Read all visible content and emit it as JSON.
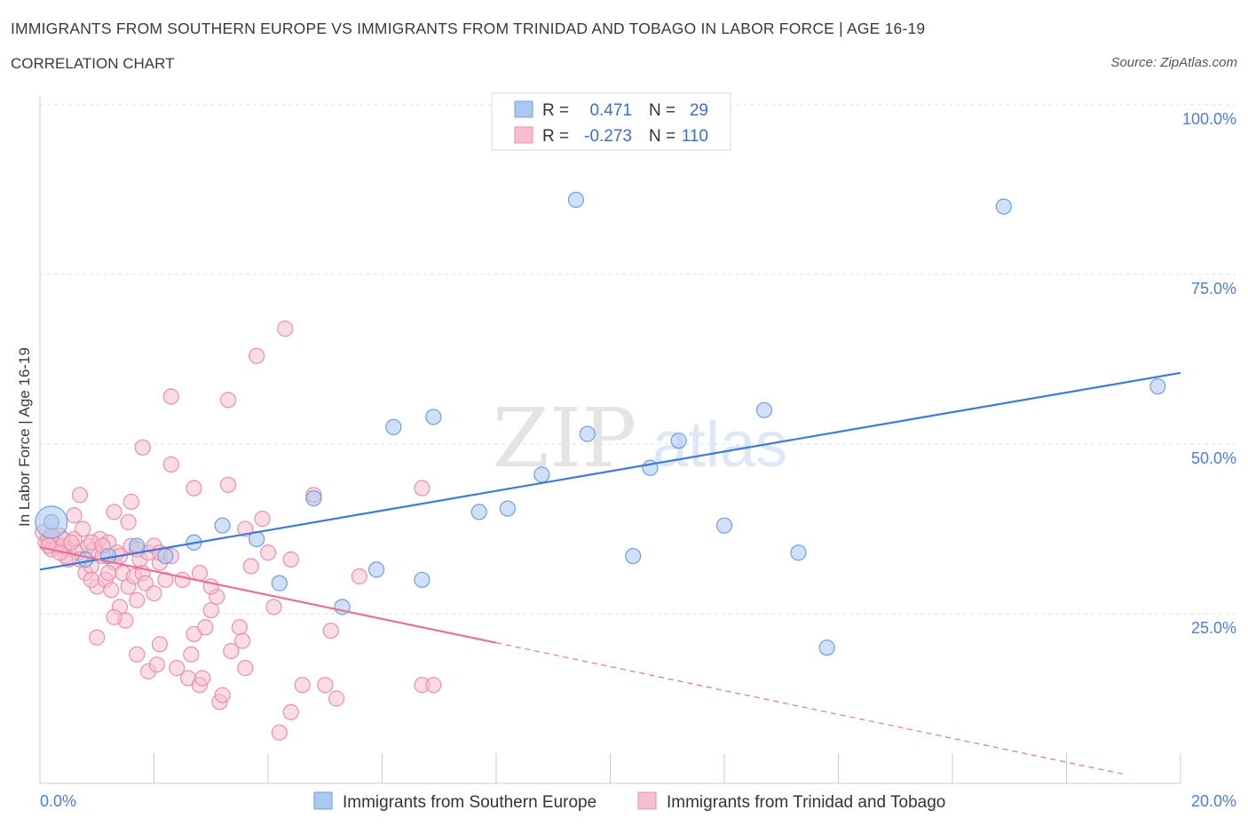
{
  "header": {
    "title": "IMMIGRANTS FROM SOUTHERN EUROPE VS IMMIGRANTS FROM TRINIDAD AND TOBAGO IN LABOR FORCE | AGE 16-19",
    "subtitle": "CORRELATION CHART",
    "source": "Source: ZipAtlas.com"
  },
  "watermark": {
    "zip": "ZIP",
    "atlas": "atlas"
  },
  "legend": {
    "rows": [
      {
        "r_label": "R =",
        "r_value": "0.471",
        "n_label": "N =",
        "n_value": "29"
      },
      {
        "r_label": "R =",
        "r_value": "-0.273",
        "n_label": "N =",
        "n_value": "110"
      }
    ]
  },
  "colors": {
    "blue_fill": "#aac8f0",
    "blue_stroke": "#6f9fe0",
    "blue_line": "#3e7ad8",
    "pink_fill": "#f6bfd0",
    "pink_stroke": "#ec8fae",
    "pink_line": "#e8709a",
    "axis_text": "#4a7fd4",
    "grid": "#dddddd"
  },
  "chart_data": {
    "type": "scatter",
    "title": "IMMIGRANTS FROM SOUTHERN EUROPE VS IMMIGRANTS FROM TRINIDAD AND TOBAGO IN LABOR FORCE | AGE 16-19",
    "ylabel": "In Labor Force | Age 16-19",
    "xlabel": "",
    "xlim": [
      0,
      20
    ],
    "ylim": [
      0,
      100
    ],
    "x_tick_labels": [
      "0.0%",
      "20.0%"
    ],
    "y_tick_labels": [
      "100.0%",
      "75.0%",
      "50.0%",
      "25.0%"
    ],
    "y_tick_values": [
      100,
      75,
      50,
      25
    ],
    "grid": true,
    "legend_position": "bottom",
    "series": [
      {
        "name": "Immigrants from Southern Europe",
        "color": "#aac8f0",
        "R": 0.471,
        "N": 29,
        "trend": {
          "x": [
            0,
            20
          ],
          "y": [
            31.5,
            60.5
          ],
          "dashed_from": null
        },
        "points": [
          [
            0.2,
            38.5
          ],
          [
            0.8,
            33.0
          ],
          [
            1.2,
            33.5
          ],
          [
            1.7,
            35.0
          ],
          [
            2.2,
            33.5
          ],
          [
            2.7,
            35.5
          ],
          [
            3.2,
            38.0
          ],
          [
            3.8,
            36.0
          ],
          [
            4.2,
            29.5
          ],
          [
            4.8,
            42.0
          ],
          [
            5.3,
            26.0
          ],
          [
            5.9,
            31.5
          ],
          [
            6.2,
            52.5
          ],
          [
            6.7,
            30.0
          ],
          [
            6.9,
            54.0
          ],
          [
            7.7,
            40.0
          ],
          [
            8.2,
            40.5
          ],
          [
            8.8,
            45.5
          ],
          [
            9.4,
            86.0
          ],
          [
            9.6,
            51.5
          ],
          [
            10.4,
            33.5
          ],
          [
            10.7,
            46.5
          ],
          [
            11.2,
            50.5
          ],
          [
            12.0,
            38.0
          ],
          [
            12.7,
            55.0
          ],
          [
            13.3,
            34.0
          ],
          [
            13.8,
            20.0
          ],
          [
            16.9,
            85.0
          ],
          [
            19.6,
            58.5
          ]
        ]
      },
      {
        "name": "Immigrants from Trinidad and Tobago",
        "color": "#f6bfd0",
        "R": -0.273,
        "N": 110,
        "trend": {
          "x": [
            0,
            20
          ],
          "y": [
            34.8,
            -0.4
          ],
          "dashed_from": 8.0
        },
        "points": [
          [
            0.05,
            37.0
          ],
          [
            0.1,
            35.5
          ],
          [
            0.15,
            36.0
          ],
          [
            0.2,
            34.5
          ],
          [
            0.3,
            35.0
          ],
          [
            0.35,
            36.5
          ],
          [
            0.4,
            35.0
          ],
          [
            0.45,
            33.5
          ],
          [
            0.5,
            34.5
          ],
          [
            0.55,
            35.5
          ],
          [
            0.6,
            36.0
          ],
          [
            0.65,
            34.0
          ],
          [
            0.7,
            33.0
          ],
          [
            0.75,
            37.5
          ],
          [
            0.8,
            31.0
          ],
          [
            0.85,
            35.0
          ],
          [
            0.9,
            32.0
          ],
          [
            0.95,
            34.5
          ],
          [
            1.0,
            29.0
          ],
          [
            1.05,
            36.0
          ],
          [
            1.1,
            33.5
          ],
          [
            1.15,
            30.0
          ],
          [
            1.2,
            35.5
          ],
          [
            1.25,
            28.5
          ],
          [
            1.3,
            32.5
          ],
          [
            1.35,
            34.0
          ],
          [
            1.4,
            26.0
          ],
          [
            1.45,
            31.0
          ],
          [
            1.5,
            24.0
          ],
          [
            1.55,
            29.0
          ],
          [
            1.6,
            35.0
          ],
          [
            1.65,
            30.5
          ],
          [
            1.7,
            27.0
          ],
          [
            1.75,
            33.0
          ],
          [
            1.8,
            31.0
          ],
          [
            1.85,
            29.5
          ],
          [
            1.9,
            34.0
          ],
          [
            2.0,
            28.0
          ],
          [
            2.1,
            32.5
          ],
          [
            2.2,
            30.0
          ],
          [
            0.7,
            42.5
          ],
          [
            0.6,
            39.5
          ],
          [
            1.3,
            40.0
          ],
          [
            1.6,
            41.5
          ],
          [
            1.55,
            38.5
          ],
          [
            1.8,
            49.5
          ],
          [
            2.3,
            57.0
          ],
          [
            2.3,
            47.0
          ],
          [
            2.7,
            43.5
          ],
          [
            3.3,
            56.5
          ],
          [
            3.3,
            44.0
          ],
          [
            3.6,
            37.5
          ],
          [
            3.7,
            32.0
          ],
          [
            3.8,
            63.0
          ],
          [
            3.9,
            39.0
          ],
          [
            4.0,
            34.0
          ],
          [
            4.1,
            26.0
          ],
          [
            4.3,
            67.0
          ],
          [
            4.4,
            33.0
          ],
          [
            4.8,
            42.5
          ],
          [
            5.0,
            14.5
          ],
          [
            5.1,
            22.5
          ],
          [
            5.2,
            12.5
          ],
          [
            5.6,
            30.5
          ],
          [
            1.0,
            21.5
          ],
          [
            1.3,
            24.5
          ],
          [
            1.7,
            19.0
          ],
          [
            1.9,
            16.5
          ],
          [
            2.05,
            17.5
          ],
          [
            2.1,
            20.5
          ],
          [
            2.4,
            17.0
          ],
          [
            2.6,
            15.5
          ],
          [
            2.65,
            19.0
          ],
          [
            2.7,
            22.0
          ],
          [
            2.8,
            14.5
          ],
          [
            2.85,
            15.5
          ],
          [
            2.9,
            23.0
          ],
          [
            3.0,
            25.5
          ],
          [
            3.1,
            27.5
          ],
          [
            3.15,
            12.0
          ],
          [
            3.2,
            13.0
          ],
          [
            3.35,
            19.5
          ],
          [
            3.5,
            23.0
          ],
          [
            3.55,
            21.0
          ],
          [
            3.6,
            17.0
          ],
          [
            4.4,
            10.5
          ],
          [
            4.6,
            14.5
          ],
          [
            4.2,
            7.5
          ],
          [
            6.7,
            14.5
          ],
          [
            6.9,
            14.5
          ],
          [
            6.7,
            43.5
          ],
          [
            0.3,
            35.0
          ],
          [
            0.4,
            36.0
          ],
          [
            0.5,
            33.0
          ],
          [
            0.9,
            35.5
          ],
          [
            1.1,
            35.0
          ],
          [
            1.4,
            33.5
          ],
          [
            1.7,
            34.5
          ],
          [
            2.0,
            35.0
          ],
          [
            2.1,
            34.0
          ],
          [
            2.3,
            33.5
          ],
          [
            2.5,
            30.0
          ],
          [
            2.8,
            31.0
          ],
          [
            3.0,
            29.0
          ],
          [
            1.2,
            31.0
          ],
          [
            0.9,
            30.0
          ],
          [
            0.2,
            36.5
          ],
          [
            0.15,
            35.0
          ],
          [
            0.35,
            34.0
          ],
          [
            0.55,
            35.5
          ]
        ]
      }
    ]
  }
}
